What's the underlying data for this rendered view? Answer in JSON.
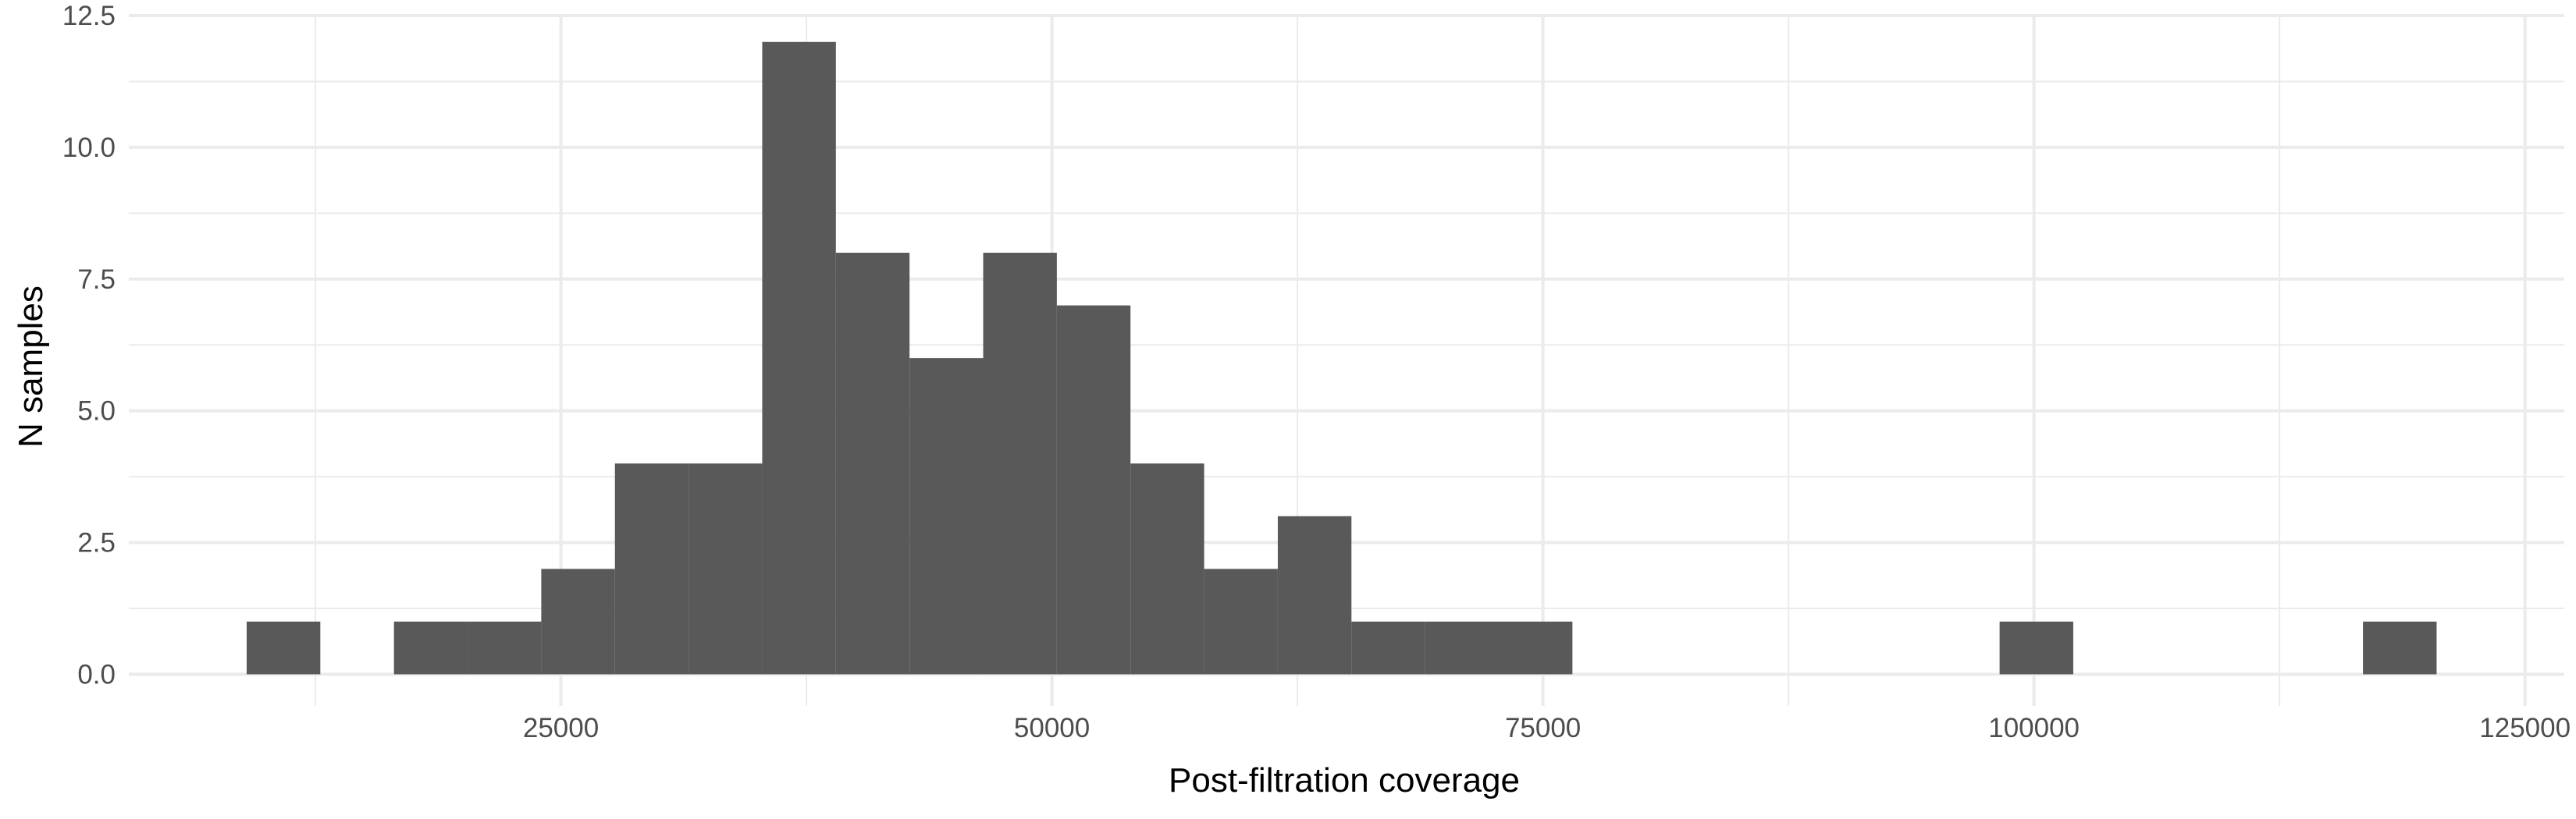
{
  "chart_data": {
    "type": "bar",
    "subtype": "histogram",
    "xlabel": "Post-filtration coverage",
    "ylabel": "N samples",
    "xlim": [
      3000,
      127000
    ],
    "ylim": [
      -0.6,
      12.5
    ],
    "x_ticks": [
      25000,
      50000,
      75000,
      100000,
      125000
    ],
    "y_ticks": [
      0.0,
      2.5,
      5.0,
      7.5,
      10.0,
      12.5
    ],
    "x_tick_labels": [
      "25000",
      "50000",
      "75000",
      "100000",
      "125000"
    ],
    "y_tick_labels": [
      "0.0",
      "2.5",
      "5.0",
      "7.5",
      "10.0",
      "12.5"
    ],
    "grid": true,
    "legend": "none",
    "bar_color": "#595959",
    "bins": [
      {
        "x_start": 9000,
        "x_end": 12750,
        "count": 1
      },
      {
        "x_start": 12750,
        "x_end": 16500,
        "count": 0
      },
      {
        "x_start": 16500,
        "x_end": 20250,
        "count": 1
      },
      {
        "x_start": 20250,
        "x_end": 24000,
        "count": 1
      },
      {
        "x_start": 24000,
        "x_end": 27750,
        "count": 2
      },
      {
        "x_start": 27750,
        "x_end": 31500,
        "count": 4
      },
      {
        "x_start": 31500,
        "x_end": 35250,
        "count": 4
      },
      {
        "x_start": 35250,
        "x_end": 39000,
        "count": 12
      },
      {
        "x_start": 39000,
        "x_end": 42750,
        "count": 8
      },
      {
        "x_start": 42750,
        "x_end": 46500,
        "count": 6
      },
      {
        "x_start": 46500,
        "x_end": 50250,
        "count": 8
      },
      {
        "x_start": 50250,
        "x_end": 54000,
        "count": 7
      },
      {
        "x_start": 54000,
        "x_end": 57750,
        "count": 4
      },
      {
        "x_start": 57750,
        "x_end": 61500,
        "count": 2
      },
      {
        "x_start": 61500,
        "x_end": 65250,
        "count": 3
      },
      {
        "x_start": 65250,
        "x_end": 69000,
        "count": 1
      },
      {
        "x_start": 69000,
        "x_end": 72750,
        "count": 1
      },
      {
        "x_start": 72750,
        "x_end": 76500,
        "count": 1
      },
      {
        "x_start": 98250,
        "x_end": 102000,
        "count": 1
      },
      {
        "x_start": 116750,
        "x_end": 120500,
        "count": 1
      }
    ]
  }
}
